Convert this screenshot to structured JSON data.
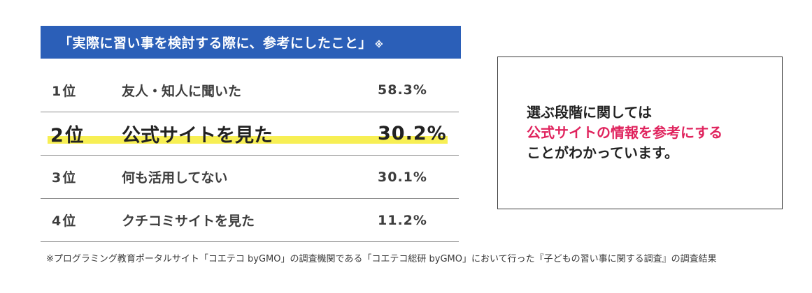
{
  "title": {
    "text": "「実際に習い事を検討する際に、参考にしたこと」",
    "mark": "※"
  },
  "ranking": [
    {
      "rank": "1位",
      "label": "友人・知人に聞いた",
      "value": "58.3%"
    },
    {
      "rank": "2位",
      "label": "公式サイトを見た",
      "value": "30.2%"
    },
    {
      "rank": "3位",
      "label": "何も活用してない",
      "value": "30.1%"
    },
    {
      "rank": "4位",
      "label": "クチコミサイトを見た",
      "value": "11.2%"
    }
  ],
  "callout": {
    "line1": "選ぶ段階に関しては",
    "line2": "公式サイトの情報を参考にする",
    "line3": "ことがわかっています。"
  },
  "footnote": "※プログラミング教育ポータルサイト「コエテコ byGMO」の調査機関である「コエテコ総研 byGMO」において行った『子どもの習い事に関する調査』の調査結果",
  "colors": {
    "banner": "#2b5fb8",
    "highlight_marker": "#f7ef54",
    "accent_text": "#e0245e"
  }
}
